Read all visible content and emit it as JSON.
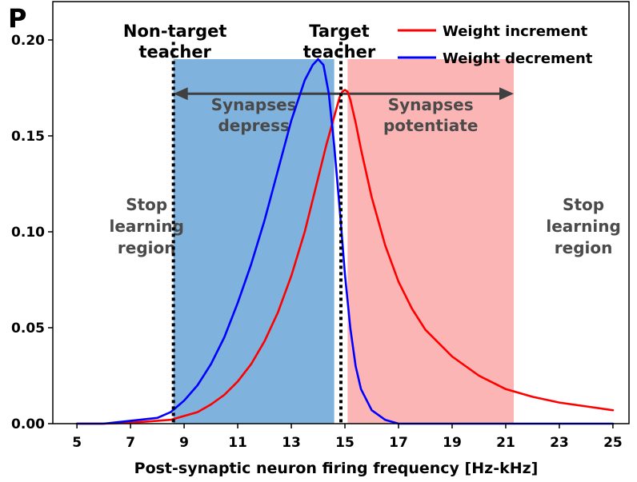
{
  "panel_label": "P",
  "chart_data": {
    "type": "line",
    "xlabel": "Post-synaptic neuron firing frequency [Hz-kHz]",
    "ylabel": "",
    "xlim": [
      4.1,
      25.6
    ],
    "ylim": [
      0,
      0.22
    ],
    "xticks": [
      5,
      7,
      9,
      11,
      13,
      15,
      17,
      19,
      21,
      23,
      25
    ],
    "yticks": [
      0.0,
      0.05,
      0.1,
      0.15,
      0.2
    ],
    "ytick_labels": [
      "0.00",
      "0.05",
      "0.10",
      "0.15",
      "0.20"
    ],
    "grid": false,
    "legend_position": "top-right",
    "series": [
      {
        "name": "Weight increment",
        "color": "#ff0000",
        "x": [
          5,
          6,
          7,
          8,
          8.5,
          9,
          9.5,
          10,
          10.5,
          11,
          11.5,
          12,
          12.5,
          13,
          13.5,
          14,
          14.3,
          14.6,
          14.8,
          14.9,
          15.0,
          15.1,
          15.2,
          15.4,
          15.6,
          16,
          16.5,
          17,
          17.5,
          18,
          19,
          20,
          21,
          22,
          23,
          24,
          25
        ],
        "values": [
          0.0,
          0.0,
          0.0005,
          0.0015,
          0.002,
          0.004,
          0.006,
          0.01,
          0.015,
          0.022,
          0.031,
          0.043,
          0.058,
          0.077,
          0.1,
          0.128,
          0.145,
          0.16,
          0.17,
          0.173,
          0.174,
          0.173,
          0.169,
          0.157,
          0.143,
          0.118,
          0.093,
          0.074,
          0.06,
          0.049,
          0.035,
          0.025,
          0.018,
          0.014,
          0.011,
          0.009,
          0.007
        ]
      },
      {
        "name": "Weight decrement",
        "color": "#0000ff",
        "x": [
          5,
          6,
          7,
          8,
          8.5,
          9,
          9.5,
          10,
          10.5,
          11,
          11.5,
          12,
          12.5,
          13,
          13.5,
          13.8,
          14.0,
          14.2,
          14.4,
          14.6,
          14.8,
          15.0,
          15.2,
          15.4,
          15.6,
          16,
          16.5,
          17,
          18,
          19,
          20,
          25
        ],
        "values": [
          0.0,
          0.0,
          0.0015,
          0.003,
          0.006,
          0.012,
          0.02,
          0.031,
          0.045,
          0.063,
          0.083,
          0.106,
          0.132,
          0.158,
          0.179,
          0.187,
          0.19,
          0.187,
          0.172,
          0.145,
          0.113,
          0.078,
          0.05,
          0.03,
          0.018,
          0.007,
          0.002,
          0.0,
          0.0,
          0.0,
          0.0,
          0.0
        ]
      }
    ],
    "regions": [
      {
        "label_lines": [
          "Synapses",
          "depress"
        ],
        "x_range": [
          8.6,
          14.6
        ],
        "y_top": 0.19,
        "color": "#7fb2dc"
      },
      {
        "label_lines": [
          "Synapses",
          "potentiate"
        ],
        "x_range": [
          15.1,
          21.3
        ],
        "y_top": 0.19,
        "color": "#fbb5b5"
      }
    ],
    "markers": [
      {
        "label_lines": [
          "Non-target",
          "teacher"
        ],
        "x": 8.6
      },
      {
        "label_lines": [
          "Target",
          "teacher"
        ],
        "x": 14.85
      }
    ],
    "arrow": {
      "x_from": 8.6,
      "x_to": 21.3,
      "y": 0.172
    },
    "side_labels": [
      {
        "lines": [
          "Stop",
          "learning",
          "region"
        ],
        "x": 7.6,
        "y": 0.1
      },
      {
        "lines": [
          "Stop",
          "learning",
          "region"
        ],
        "x": 23.9,
        "y": 0.1
      }
    ]
  }
}
